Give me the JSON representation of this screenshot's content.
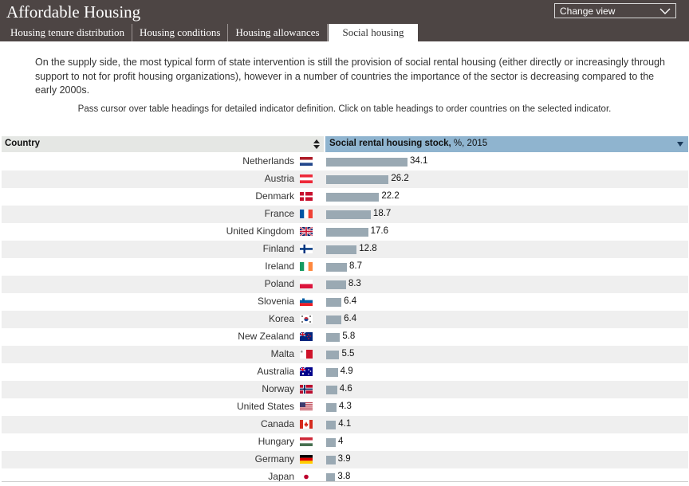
{
  "header": {
    "title": "Affordable Housing",
    "change_view_label": "Change view",
    "tabs": [
      {
        "label": "Housing tenure distribution"
      },
      {
        "label": "Housing conditions"
      },
      {
        "label": "Housing allowances"
      },
      {
        "label": "Social housing"
      }
    ],
    "active_tab": 3
  },
  "intro_text": "On the supply side, the most typical form of state intervention is still the provision of social rental housing (either directly or increasingly through support to not for profit housing organizations), however in a number of countries the importance of the sector is decreasing compared to the early 2000s.",
  "hint_text": "Pass cursor over table headings for detailed indicator definition. Click on table headings to order countries on the selected indicator.",
  "table": {
    "country_header": "Country",
    "indicator_header_bold": "Social rental housing stock,",
    "indicator_header_rest": " %, 2015"
  },
  "chart_data": {
    "type": "bar",
    "orientation": "horizontal",
    "xlim": [
      0,
      34.1
    ],
    "categories": [
      "Netherlands",
      "Austria",
      "Denmark",
      "France",
      "United Kingdom",
      "Finland",
      "Ireland",
      "Poland",
      "Slovenia",
      "Korea",
      "New Zealand",
      "Malta",
      "Australia",
      "Norway",
      "United States",
      "Canada",
      "Hungary",
      "Germany",
      "Japan"
    ],
    "values": [
      34.1,
      26.2,
      22.2,
      18.7,
      17.6,
      12.8,
      8.7,
      8.3,
      6.4,
      6.4,
      5.8,
      5.5,
      4.9,
      4.6,
      4.3,
      4.1,
      4,
      3.9,
      3.8
    ],
    "value_labels": [
      "34.1",
      "26.2",
      "22.2",
      "18.7",
      "17.6",
      "12.8",
      "8.7",
      "8.3",
      "6.4",
      "6.4",
      "5.8",
      "5.5",
      "4.9",
      "4.6",
      "4.3",
      "4.1",
      "4",
      "3.9",
      "3.8"
    ],
    "flag_icons": [
      "netherlands-flag-icon",
      "austria-flag-icon",
      "denmark-flag-icon",
      "france-flag-icon",
      "united-kingdom-flag-icon",
      "finland-flag-icon",
      "ireland-flag-icon",
      "poland-flag-icon",
      "slovenia-flag-icon",
      "korea-flag-icon",
      "new-zealand-flag-icon",
      "malta-flag-icon",
      "australia-flag-icon",
      "norway-flag-icon",
      "united-states-flag-icon",
      "canada-flag-icon",
      "hungary-flag-icon",
      "germany-flag-icon",
      "japan-flag-icon"
    ],
    "bar_color": "#9aa9b3"
  }
}
